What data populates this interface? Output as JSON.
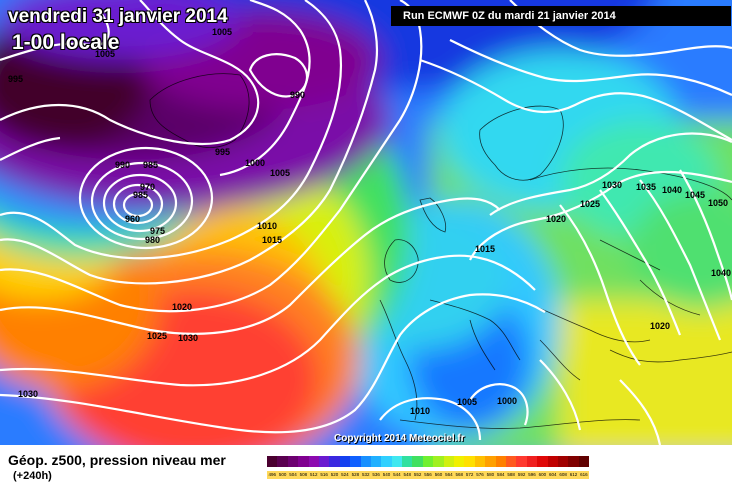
{
  "header": {
    "date": "vendredi 31 janvier 2014",
    "time": "1-00 locale",
    "run": "Run ECMWF 0Z du mardi 21 janvier 2014"
  },
  "copyright": "Copyright 2014 Meteociel.fr",
  "legend": {
    "title": "Géop. z500, pression niveau mer",
    "subtitle": "(+240h)",
    "values": [
      "496",
      "500",
      "504",
      "508",
      "512",
      "516",
      "520",
      "524",
      "528",
      "532",
      "536",
      "540",
      "544",
      "548",
      "552",
      "556",
      "560",
      "564",
      "568",
      "572",
      "576",
      "580",
      "584",
      "588",
      "592",
      "596",
      "600",
      "604",
      "608",
      "612",
      "616"
    ],
    "colors": [
      "#4a0030",
      "#5a0050",
      "#6c0070",
      "#800090",
      "#8c0ab0",
      "#6a1ad0",
      "#3a28e0",
      "#1440f0",
      "#1060ff",
      "#1890ff",
      "#20b0ff",
      "#30d0ff",
      "#40e8f0",
      "#30e0a0",
      "#40e060",
      "#70f030",
      "#a0f020",
      "#d0f010",
      "#f0f000",
      "#ffe000",
      "#ffc000",
      "#ffa000",
      "#ff8000",
      "#ff5a20",
      "#ff3a30",
      "#f02020",
      "#e00808",
      "#c00000",
      "#a00000",
      "#800000",
      "#600000"
    ]
  },
  "isobars": [
    {
      "id": "995-a",
      "text": "995"
    },
    {
      "id": "1005-a",
      "text": "1005"
    },
    {
      "id": "1005-b",
      "text": "1005"
    },
    {
      "id": "990-a",
      "text": "990"
    },
    {
      "id": "995-b",
      "text": "995"
    },
    {
      "id": "990-b",
      "text": "990"
    },
    {
      "id": "985",
      "text": "985"
    },
    {
      "id": "970",
      "text": "970"
    },
    {
      "id": "985-b",
      "text": "985"
    },
    {
      "id": "960",
      "text": "960"
    },
    {
      "id": "975",
      "text": "975"
    },
    {
      "id": "980",
      "text": "980"
    },
    {
      "id": "1000-a",
      "text": "1000"
    },
    {
      "id": "1005-c",
      "text": "1005"
    },
    {
      "id": "1010",
      "text": "1010"
    },
    {
      "id": "1015-a",
      "text": "1015"
    },
    {
      "id": "1020-a",
      "text": "1020"
    },
    {
      "id": "1025-a",
      "text": "1025"
    },
    {
      "id": "1030-a",
      "text": "1030"
    },
    {
      "id": "1030-b",
      "text": "1030"
    },
    {
      "id": "1015-b",
      "text": "1015"
    },
    {
      "id": "1020-b",
      "text": "1020"
    },
    {
      "id": "1025-b",
      "text": "1025"
    },
    {
      "id": "1030-c",
      "text": "1030"
    },
    {
      "id": "1035",
      "text": "1035"
    },
    {
      "id": "1040-a",
      "text": "1040"
    },
    {
      "id": "1045",
      "text": "1045"
    },
    {
      "id": "1050",
      "text": "1050"
    },
    {
      "id": "1040-b",
      "text": "1040"
    },
    {
      "id": "1020-c",
      "text": "1020"
    },
    {
      "id": "1010-b",
      "text": "1010"
    },
    {
      "id": "1005-d",
      "text": "1005"
    },
    {
      "id": "1000-b",
      "text": "1000"
    }
  ]
}
